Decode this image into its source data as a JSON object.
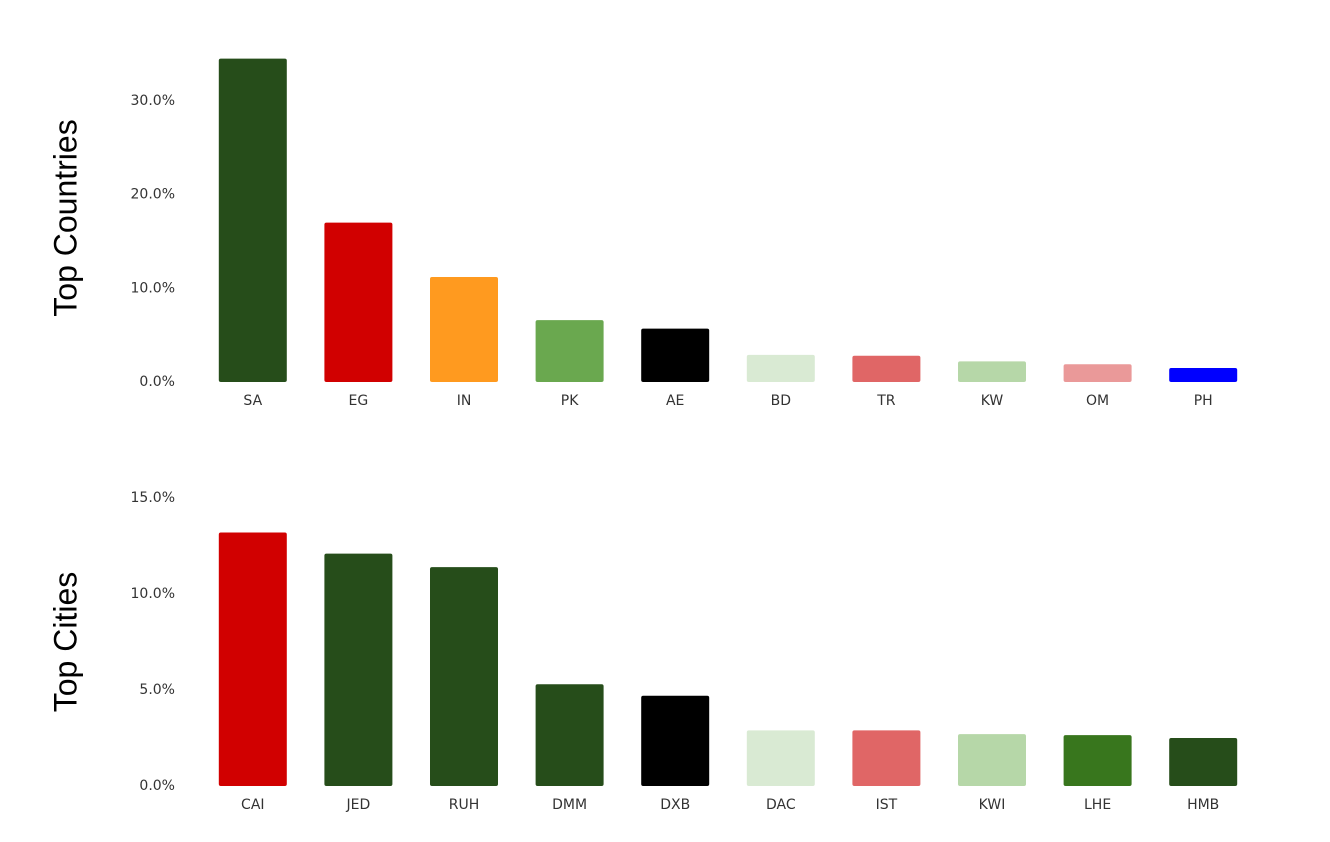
{
  "chart_data": [
    {
      "type": "bar",
      "y_label": "Top Countries",
      "categories": [
        "SA",
        "EG",
        "IN",
        "PK",
        "AE",
        "BD",
        "TR",
        "KW",
        "OM",
        "PH"
      ],
      "values": [
        34.5,
        17.0,
        11.2,
        6.6,
        5.7,
        2.9,
        2.8,
        2.2,
        1.9,
        1.5
      ],
      "colors": [
        "#264d1a",
        "#d10000",
        "#ff9a1f",
        "#6aa84f",
        "#000000",
        "#d9ead3",
        "#e06666",
        "#b6d7a8",
        "#ea9999",
        "#0000ff"
      ],
      "ylim": [
        0,
        35
      ],
      "yticks": [
        {
          "value": 0,
          "label": "0.0%"
        },
        {
          "value": 10,
          "label": "10.0%"
        },
        {
          "value": 20,
          "label": "20.0%"
        },
        {
          "value": 30,
          "label": "30.0%"
        }
      ],
      "grid": false
    },
    {
      "type": "bar",
      "y_label": "Top Cities",
      "categories": [
        "CAI",
        "JED",
        "RUH",
        "DMM",
        "DXB",
        "DAC",
        "IST",
        "KWI",
        "LHE",
        "HMB"
      ],
      "values": [
        13.2,
        12.1,
        11.4,
        5.3,
        4.7,
        2.9,
        2.9,
        2.7,
        2.65,
        2.5
      ],
      "colors": [
        "#d10000",
        "#264d1a",
        "#264d1a",
        "#264d1a",
        "#000000",
        "#d9ead3",
        "#e06666",
        "#b6d7a8",
        "#38761d",
        "#264d1a"
      ],
      "ylim": [
        0,
        15
      ],
      "yticks": [
        {
          "value": 0,
          "label": "0.0%"
        },
        {
          "value": 5,
          "label": "5.0%"
        },
        {
          "value": 10,
          "label": "10.0%"
        },
        {
          "value": 15,
          "label": "15.0%"
        }
      ],
      "grid": false
    }
  ]
}
